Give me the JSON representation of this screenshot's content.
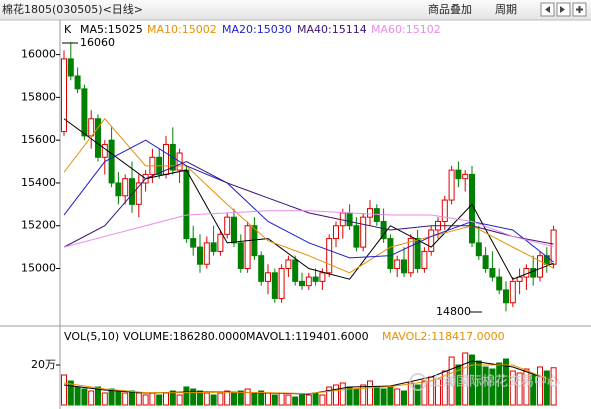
{
  "header": {
    "title": "棉花1805(030505)<日线>",
    "buttons": [
      "商品叠加",
      "周期"
    ]
  },
  "watermark": "上海国际棉花交易中心",
  "chart_data": [
    {
      "type": "candlestick",
      "label": "K",
      "open": [
        15640,
        15980,
        15900,
        15840,
        15620,
        15700,
        15520,
        15600,
        15400,
        15340,
        15420,
        15300,
        15400,
        15440,
        15520,
        15440,
        15580,
        15460,
        15460,
        15140,
        15100,
        15020,
        15120,
        15080,
        15160,
        15240,
        15120,
        15000,
        15200,
        15060,
        14940,
        14980,
        14860,
        15000,
        15040,
        14940,
        14920,
        14960,
        14940,
        14980,
        15140,
        15200,
        15260,
        15200,
        15100,
        15240,
        15280,
        15220,
        15140,
        15000,
        15040,
        14980,
        15140,
        15000,
        15080,
        15180,
        15220,
        15320,
        15460,
        15420,
        15440,
        15120,
        15060,
        15000,
        14960,
        14900,
        14840,
        14940,
        14960,
        15000,
        14960,
        15060,
        15020
      ],
      "high": [
        16020,
        16060,
        15940,
        15860,
        15740,
        15720,
        15600,
        15660,
        15450,
        15440,
        15500,
        15440,
        15460,
        15560,
        15560,
        15620,
        15660,
        15560,
        15480,
        15200,
        15160,
        15150,
        15200,
        15180,
        15260,
        15280,
        15160,
        15220,
        15240,
        15080,
        15020,
        15000,
        15020,
        15060,
        15060,
        14980,
        14980,
        15000,
        15000,
        15160,
        15220,
        15280,
        15300,
        15240,
        15260,
        15320,
        15300,
        15280,
        15160,
        15060,
        15100,
        15160,
        15180,
        15100,
        15200,
        15240,
        15340,
        15480,
        15500,
        15460,
        15480,
        15200,
        15100,
        15080,
        15000,
        14940,
        14960,
        15000,
        15020,
        15060,
        15080,
        15100,
        15200
      ],
      "low": [
        15620,
        15880,
        15820,
        15600,
        15560,
        15500,
        15440,
        15380,
        15300,
        15300,
        15260,
        15240,
        15360,
        15400,
        15420,
        15420,
        15440,
        15400,
        15120,
        15060,
        14980,
        15000,
        15060,
        15060,
        15140,
        15100,
        14980,
        14980,
        15040,
        14920,
        14880,
        14840,
        14840,
        14960,
        14920,
        14900,
        14900,
        14920,
        14900,
        14960,
        15100,
        15140,
        15180,
        15080,
        15080,
        15200,
        15200,
        15120,
        14980,
        14960,
        14960,
        14960,
        14980,
        14980,
        15060,
        15140,
        15180,
        15300,
        15380,
        15360,
        15100,
        15040,
        14980,
        14940,
        14880,
        14800,
        14820,
        14880,
        14900,
        14920,
        14940,
        14980,
        15000
      ],
      "close": [
        15980,
        15900,
        15840,
        15620,
        15700,
        15520,
        15580,
        15400,
        15340,
        15420,
        15300,
        15400,
        15440,
        15520,
        15440,
        15580,
        15460,
        15540,
        15140,
        15100,
        15020,
        15120,
        15080,
        15160,
        15240,
        15120,
        15000,
        15200,
        15060,
        14940,
        14980,
        14860,
        15000,
        15040,
        14940,
        14920,
        14960,
        14940,
        14980,
        15140,
        15200,
        15260,
        15200,
        15100,
        15240,
        15280,
        15220,
        15140,
        15000,
        15040,
        14980,
        15140,
        15000,
        15080,
        15180,
        15220,
        15320,
        15460,
        15420,
        15440,
        15120,
        15060,
        15000,
        14960,
        14900,
        14840,
        14940,
        14960,
        15000,
        14960,
        15060,
        15020,
        15180
      ],
      "up_color": "#e00000",
      "down_color": "#008000",
      "ma_x": [
        0,
        6,
        12,
        18,
        24,
        30,
        36,
        42,
        48,
        54,
        60,
        66,
        72
      ],
      "series": [
        {
          "name": "MA5:15025",
          "color": "#000000",
          "values": [
            15700,
            15560,
            15420,
            15460,
            15120,
            15140,
            15000,
            14950,
            15200,
            15100,
            15300,
            14950,
            15025
          ]
        },
        {
          "name": "MA10:15002",
          "color": "#e89000",
          "values": [
            15450,
            15700,
            15480,
            15480,
            15300,
            15130,
            15060,
            14980,
            15100,
            15150,
            15200,
            15100,
            15002
          ]
        },
        {
          "name": "MA20:15030",
          "color": "#1e1ec8",
          "values": [
            15250,
            15500,
            15600,
            15480,
            15400,
            15220,
            15120,
            15050,
            15060,
            15150,
            15220,
            15180,
            15030
          ]
        },
        {
          "name": "MA40:15114",
          "color": "#3c1478",
          "values": [
            15100,
            15200,
            15420,
            15500,
            15400,
            15330,
            15260,
            15220,
            15180,
            15200,
            15200,
            15150,
            15114
          ]
        },
        {
          "name": "MA60:15102",
          "color": "#e88ce8",
          "values": [
            15100,
            15150,
            15200,
            15250,
            15260,
            15270,
            15270,
            15260,
            15250,
            15250,
            15220,
            15150,
            15102
          ]
        }
      ],
      "annotations": [
        "16060",
        "14800"
      ],
      "ylim": [
        14750,
        16115
      ],
      "yticks": [
        15000,
        15200,
        15400,
        15600,
        15800,
        16000
      ]
    },
    {
      "type": "bar",
      "label": "VOL(5,10)",
      "header": [
        "VOLUME:186280.0000",
        "MAVOL1:119401.6000",
        "MAVOL2:118417.0000"
      ],
      "values": [
        150000,
        120000,
        90000,
        80000,
        70000,
        90000,
        60000,
        80000,
        70000,
        60000,
        70000,
        60000,
        50000,
        60000,
        50000,
        60000,
        70000,
        50000,
        90000,
        80000,
        70000,
        60000,
        50000,
        60000,
        70000,
        60000,
        70000,
        80000,
        60000,
        70000,
        60000,
        50000,
        60000,
        50000,
        40000,
        50000,
        50000,
        60000,
        50000,
        90000,
        100000,
        110000,
        90000,
        80000,
        100000,
        120000,
        90000,
        80000,
        90000,
        80000,
        70000,
        110000,
        100000,
        120000,
        140000,
        130000,
        170000,
        240000,
        200000,
        260000,
        250000,
        220000,
        190000,
        180000,
        210000,
        230000,
        170000,
        160000,
        180000,
        150000,
        190000,
        170000,
        186280
      ],
      "ma_x": [
        0,
        6,
        12,
        18,
        24,
        30,
        36,
        42,
        48,
        54,
        60,
        66,
        72
      ],
      "series": [
        {
          "color": "#000000",
          "values": [
            100000,
            75000,
            60000,
            65000,
            65000,
            60000,
            55000,
            90000,
            95000,
            140000,
            220000,
            190000,
            119401.6
          ]
        },
        {
          "color": "#e89000",
          "values": [
            110000,
            80000,
            62000,
            62000,
            64000,
            62000,
            57000,
            80000,
            92000,
            120000,
            200000,
            200000,
            118417
          ]
        }
      ],
      "ylim": [
        0,
        325000
      ],
      "yticks": [
        {
          "value": 200000,
          "label": "20万"
        }
      ]
    }
  ]
}
